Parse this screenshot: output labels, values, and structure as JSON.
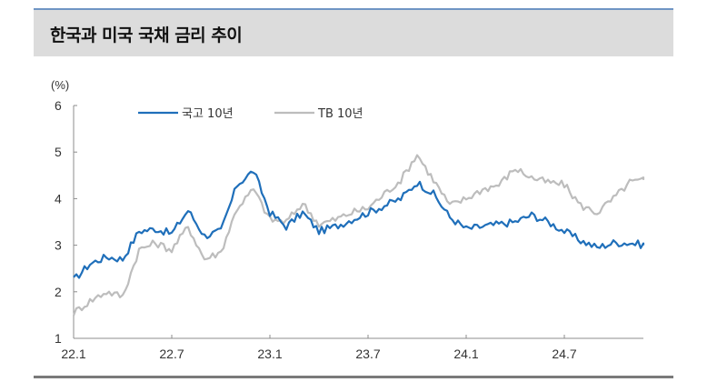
{
  "header": {
    "title": "한국과 미국 국채 금리 추이"
  },
  "chart": {
    "unit_label": "(%)"
  },
  "chart_data": {
    "type": "line",
    "title": "한국과 미국 국채 금리 추이",
    "xlabel": "",
    "ylabel": "(%)",
    "ylim": [
      1,
      6
    ],
    "yticks": [
      "1",
      "2",
      "3",
      "4",
      "5",
      "6"
    ],
    "xticks": [
      "22.1",
      "22.7",
      "23.1",
      "23.7",
      "24.1",
      "24.7"
    ],
    "grid": false,
    "legend_position": "top-left inside",
    "x": [
      "22.1",
      "22.2",
      "22.3",
      "22.4",
      "22.5",
      "22.6",
      "22.7",
      "22.8",
      "22.9",
      "22.10",
      "22.11",
      "22.12",
      "23.1",
      "23.2",
      "23.3",
      "23.4",
      "23.5",
      "23.6",
      "23.7",
      "23.8",
      "23.9",
      "23.10",
      "23.11",
      "23.12",
      "24.1",
      "24.2",
      "24.3",
      "24.4",
      "24.5",
      "24.6",
      "24.7",
      "24.8",
      "24.9",
      "24.10",
      "24.11",
      "24.12"
    ],
    "series": [
      {
        "name": "국고 10년",
        "color": "#1f6fba",
        "values": [
          2.25,
          2.6,
          2.75,
          2.7,
          3.3,
          3.35,
          3.25,
          3.75,
          3.2,
          3.3,
          4.3,
          4.6,
          3.7,
          3.4,
          3.7,
          3.3,
          3.4,
          3.55,
          3.7,
          3.85,
          4.0,
          4.35,
          4.1,
          3.6,
          3.35,
          3.4,
          3.45,
          3.5,
          3.65,
          3.5,
          3.3,
          3.1,
          2.95,
          3.05,
          3.05,
          3.0
        ]
      },
      {
        "name": "TB 10년",
        "color": "#bdbdbd",
        "values": [
          1.55,
          1.8,
          2.0,
          1.9,
          2.9,
          3.05,
          2.9,
          3.4,
          2.7,
          2.85,
          3.8,
          4.2,
          3.55,
          3.5,
          3.9,
          3.45,
          3.55,
          3.7,
          3.8,
          4.1,
          4.4,
          4.95,
          4.4,
          3.85,
          4.0,
          4.2,
          4.3,
          4.65,
          4.45,
          4.35,
          4.3,
          3.85,
          3.7,
          4.0,
          4.35,
          4.4
        ]
      }
    ]
  },
  "legend": {
    "items": [
      {
        "label": "국고 10년",
        "color": "#1f6fba"
      },
      {
        "label": "TB 10년",
        "color": "#bdbdbd"
      }
    ]
  },
  "axis": {
    "y": [
      "1",
      "2",
      "3",
      "4",
      "5",
      "6"
    ],
    "x": [
      "22.1",
      "22.7",
      "23.1",
      "23.7",
      "24.1",
      "24.7"
    ]
  }
}
